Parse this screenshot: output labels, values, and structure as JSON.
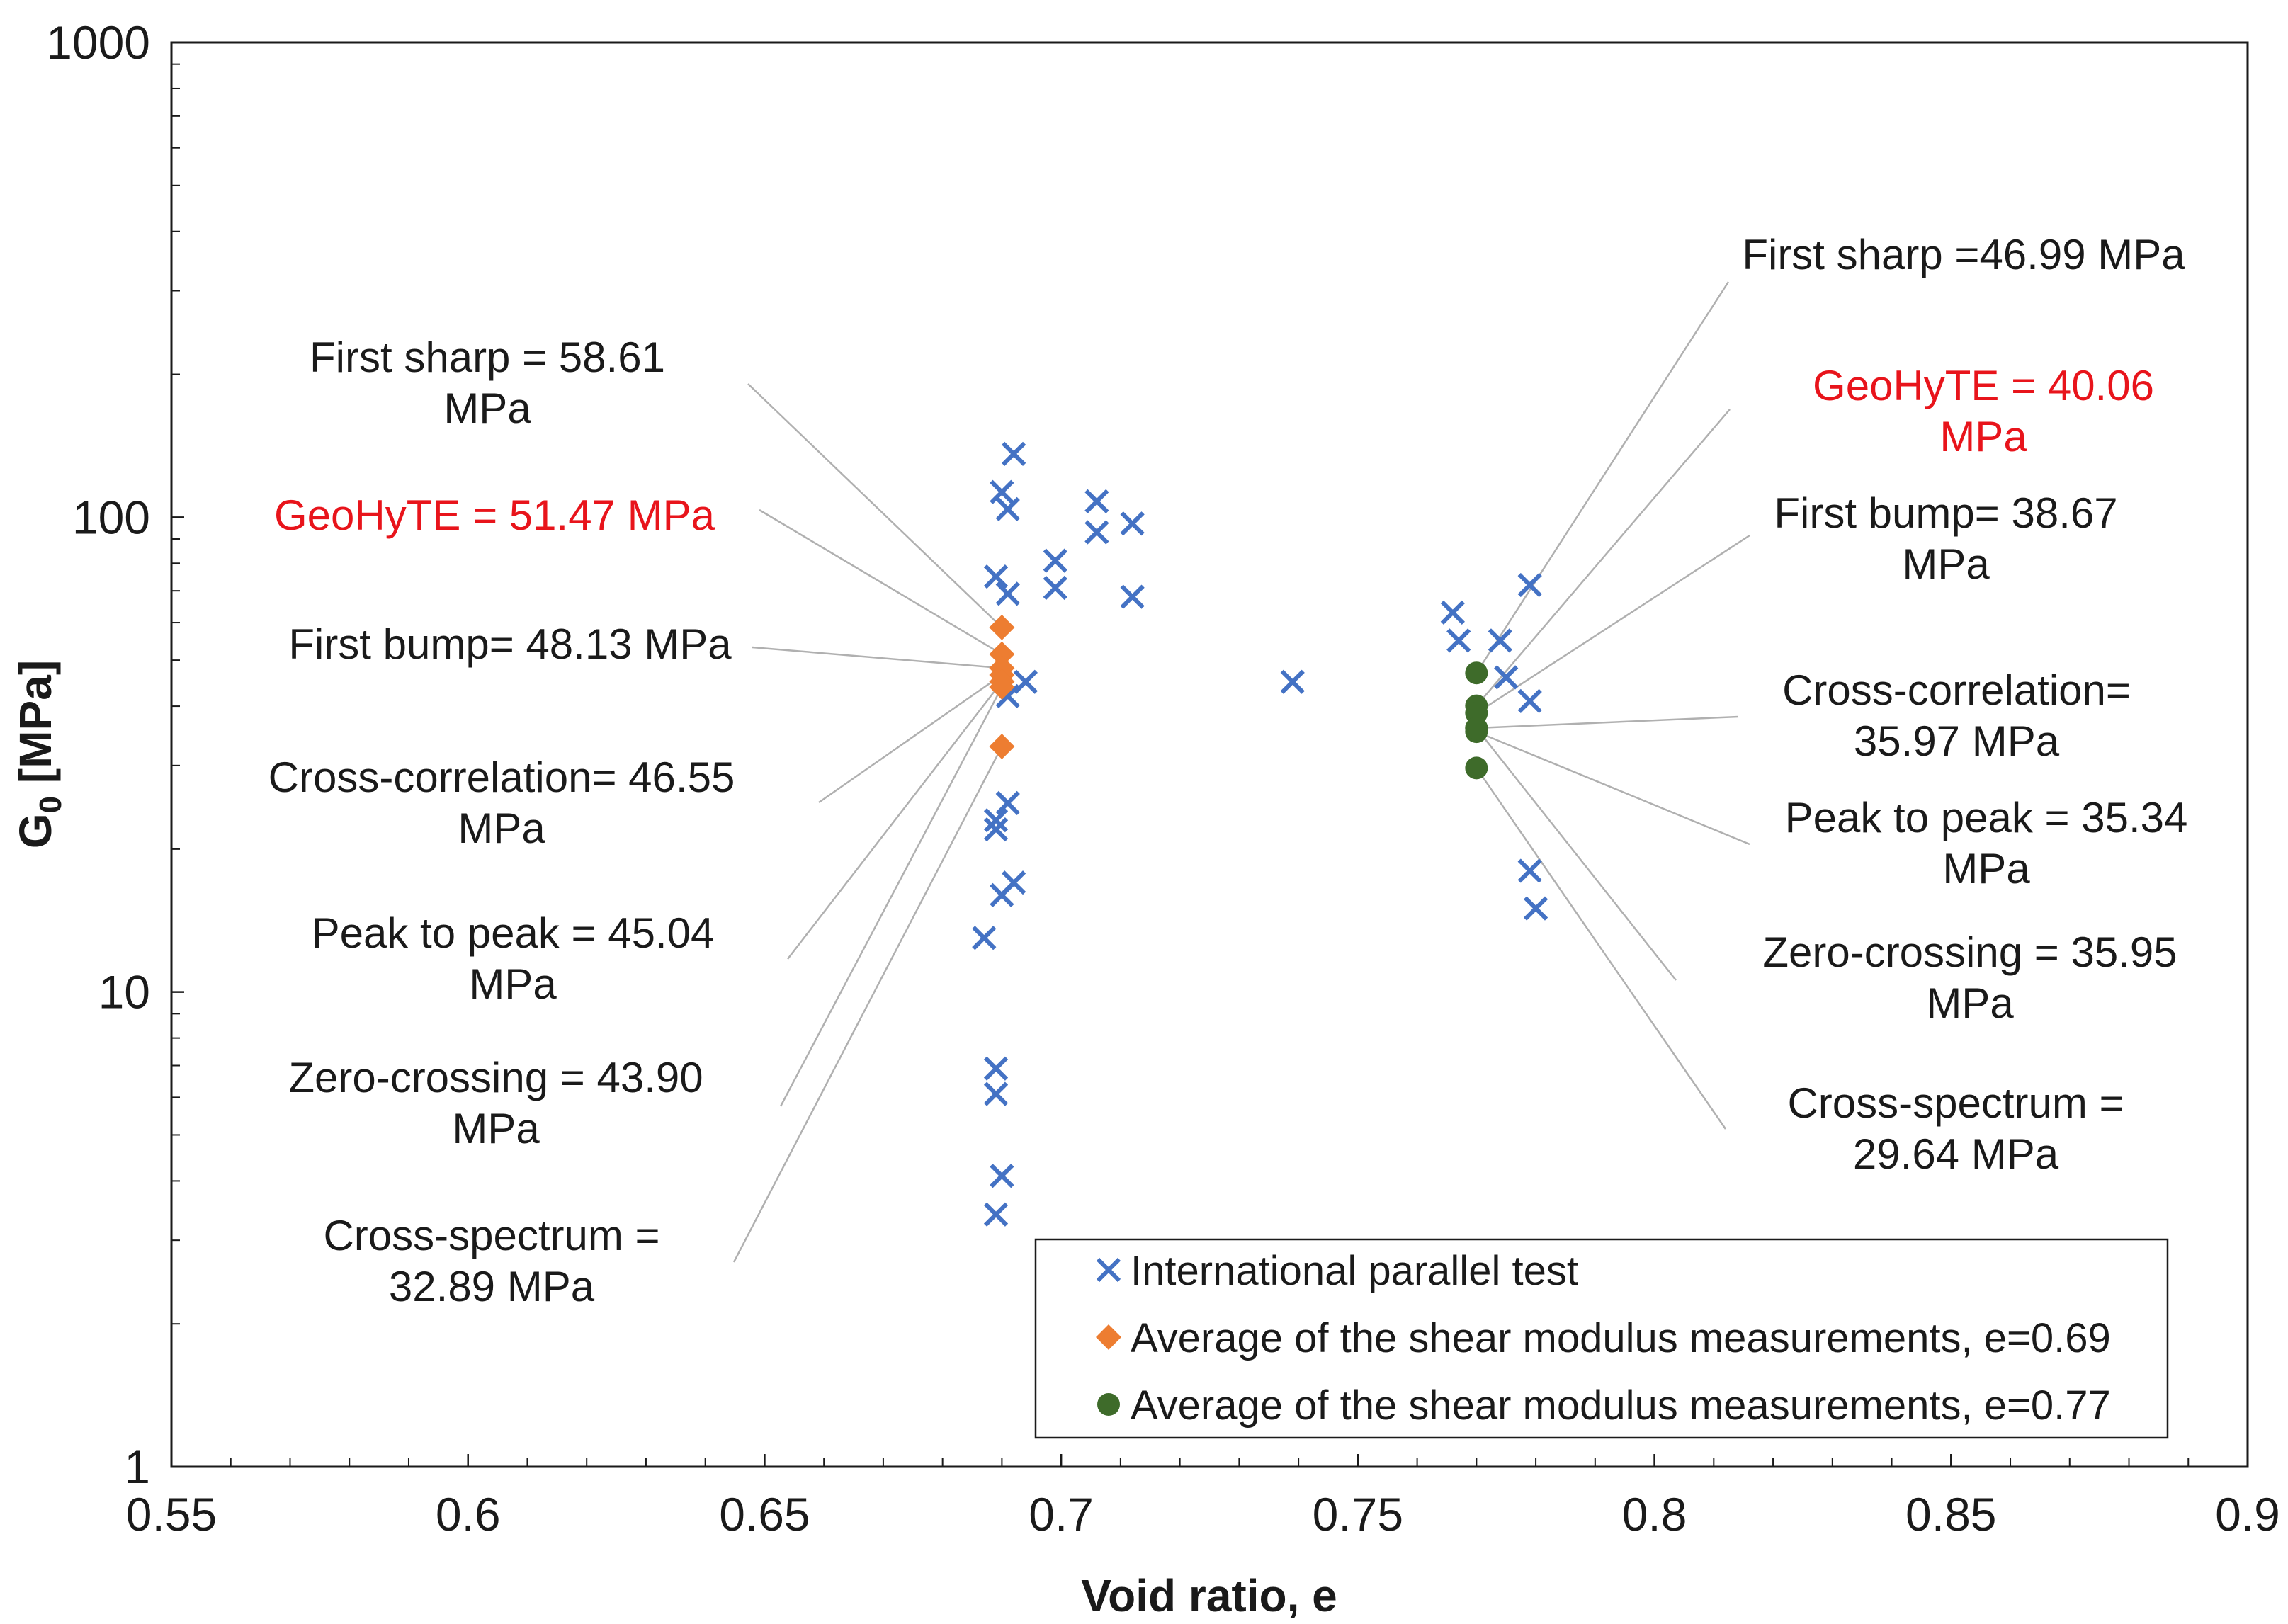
{
  "colors": {
    "parallel": "#4472C4",
    "avg069": "#ED7D31",
    "avg077": "#3E6B2A",
    "highlight": "#E8141B"
  },
  "chart_data": {
    "type": "scatter",
    "xlabel": "Void ratio, e",
    "ylabel_main": "G",
    "ylabel_sub": "0",
    "ylabel_unit": " [MPa]",
    "xlim": [
      0.55,
      0.9
    ],
    "ylim": [
      1,
      1000
    ],
    "yscale": "log",
    "x_ticks": [
      0.55,
      0.6,
      0.65,
      0.7,
      0.75,
      0.8,
      0.85,
      0.9
    ],
    "x_tick_labels": [
      "0.55",
      "0.6",
      "0.65",
      "0.7",
      "0.75",
      "0.8",
      "0.85",
      "0.9"
    ],
    "y_ticks": [
      1,
      10,
      100,
      1000
    ],
    "y_tick_labels": [
      "1",
      "10",
      "100",
      "1000"
    ],
    "legend_position": "bottom-right",
    "series": [
      {
        "name": "International parallel test",
        "marker": "x",
        "points": [
          [
            0.692,
            136
          ],
          [
            0.69,
            113
          ],
          [
            0.691,
            104
          ],
          [
            0.706,
            108
          ],
          [
            0.712,
            97
          ],
          [
            0.706,
            93
          ],
          [
            0.689,
            75
          ],
          [
            0.691,
            69
          ],
          [
            0.699,
            81
          ],
          [
            0.699,
            71
          ],
          [
            0.712,
            68
          ],
          [
            0.694,
            45
          ],
          [
            0.691,
            42
          ],
          [
            0.691,
            25
          ],
          [
            0.689,
            23
          ],
          [
            0.689,
            22
          ],
          [
            0.692,
            17
          ],
          [
            0.69,
            16
          ],
          [
            0.687,
            13
          ],
          [
            0.689,
            6.9
          ],
          [
            0.689,
            6.1
          ],
          [
            0.69,
            4.1
          ],
          [
            0.689,
            3.4
          ],
          [
            0.739,
            45
          ],
          [
            0.766,
            63
          ],
          [
            0.767,
            55
          ],
          [
            0.779,
            72
          ],
          [
            0.774,
            55
          ],
          [
            0.775,
            46
          ],
          [
            0.779,
            41
          ],
          [
            0.779,
            18
          ],
          [
            0.78,
            15
          ]
        ]
      },
      {
        "name": "Average of the shear modulus measurements, e=0.69",
        "marker": "diamond",
        "points": [
          [
            0.69,
            58.61
          ],
          [
            0.69,
            51.47
          ],
          [
            0.69,
            48.13
          ],
          [
            0.69,
            46.55
          ],
          [
            0.69,
            45.04
          ],
          [
            0.69,
            43.9
          ],
          [
            0.69,
            32.89
          ]
        ]
      },
      {
        "name": "Average of the shear modulus measurements, e=0.77",
        "marker": "circle",
        "points": [
          [
            0.77,
            46.99
          ],
          [
            0.77,
            40.06
          ],
          [
            0.77,
            38.67
          ],
          [
            0.77,
            35.97
          ],
          [
            0.77,
            35.34
          ],
          [
            0.77,
            35.95
          ],
          [
            0.77,
            29.64
          ]
        ]
      }
    ],
    "annotations_left": [
      {
        "lines": [
          "First sharp = 58.61",
          "MPa"
        ],
        "value": 58.61,
        "highlight": false
      },
      {
        "lines": [
          "GeoHyTE = 51.47 MPa"
        ],
        "value": 51.47,
        "highlight": true
      },
      {
        "lines": [
          "First bump= 48.13 MPa"
        ],
        "value": 48.13,
        "highlight": false
      },
      {
        "lines": [
          "Cross-correlation= 46.55",
          "MPa"
        ],
        "value": 46.55,
        "highlight": false
      },
      {
        "lines": [
          "Peak to peak = 45.04",
          "MPa"
        ],
        "value": 45.04,
        "highlight": false
      },
      {
        "lines": [
          "Zero-crossing = 43.90",
          "MPa"
        ],
        "value": 43.9,
        "highlight": false
      },
      {
        "lines": [
          "Cross-spectrum =",
          "32.89 MPa"
        ],
        "value": 32.89,
        "highlight": false
      }
    ],
    "annotations_right": [
      {
        "lines": [
          "First sharp =46.99 MPa"
        ],
        "value": 46.99,
        "highlight": false
      },
      {
        "lines": [
          "GeoHyTE = 40.06",
          "MPa"
        ],
        "value": 40.06,
        "highlight": true
      },
      {
        "lines": [
          "First bump= 38.67",
          "MPa"
        ],
        "value": 38.67,
        "highlight": false
      },
      {
        "lines": [
          "Cross-correlation=",
          "35.97 MPa"
        ],
        "value": 35.97,
        "highlight": false
      },
      {
        "lines": [
          "Peak to peak = 35.34",
          "MPa"
        ],
        "value": 35.34,
        "highlight": false
      },
      {
        "lines": [
          "Zero-crossing = 35.95",
          "MPa"
        ],
        "value": 35.95,
        "highlight": false
      },
      {
        "lines": [
          "Cross-spectrum =",
          "29.64 MPa"
        ],
        "value": 29.64,
        "highlight": false
      }
    ]
  }
}
